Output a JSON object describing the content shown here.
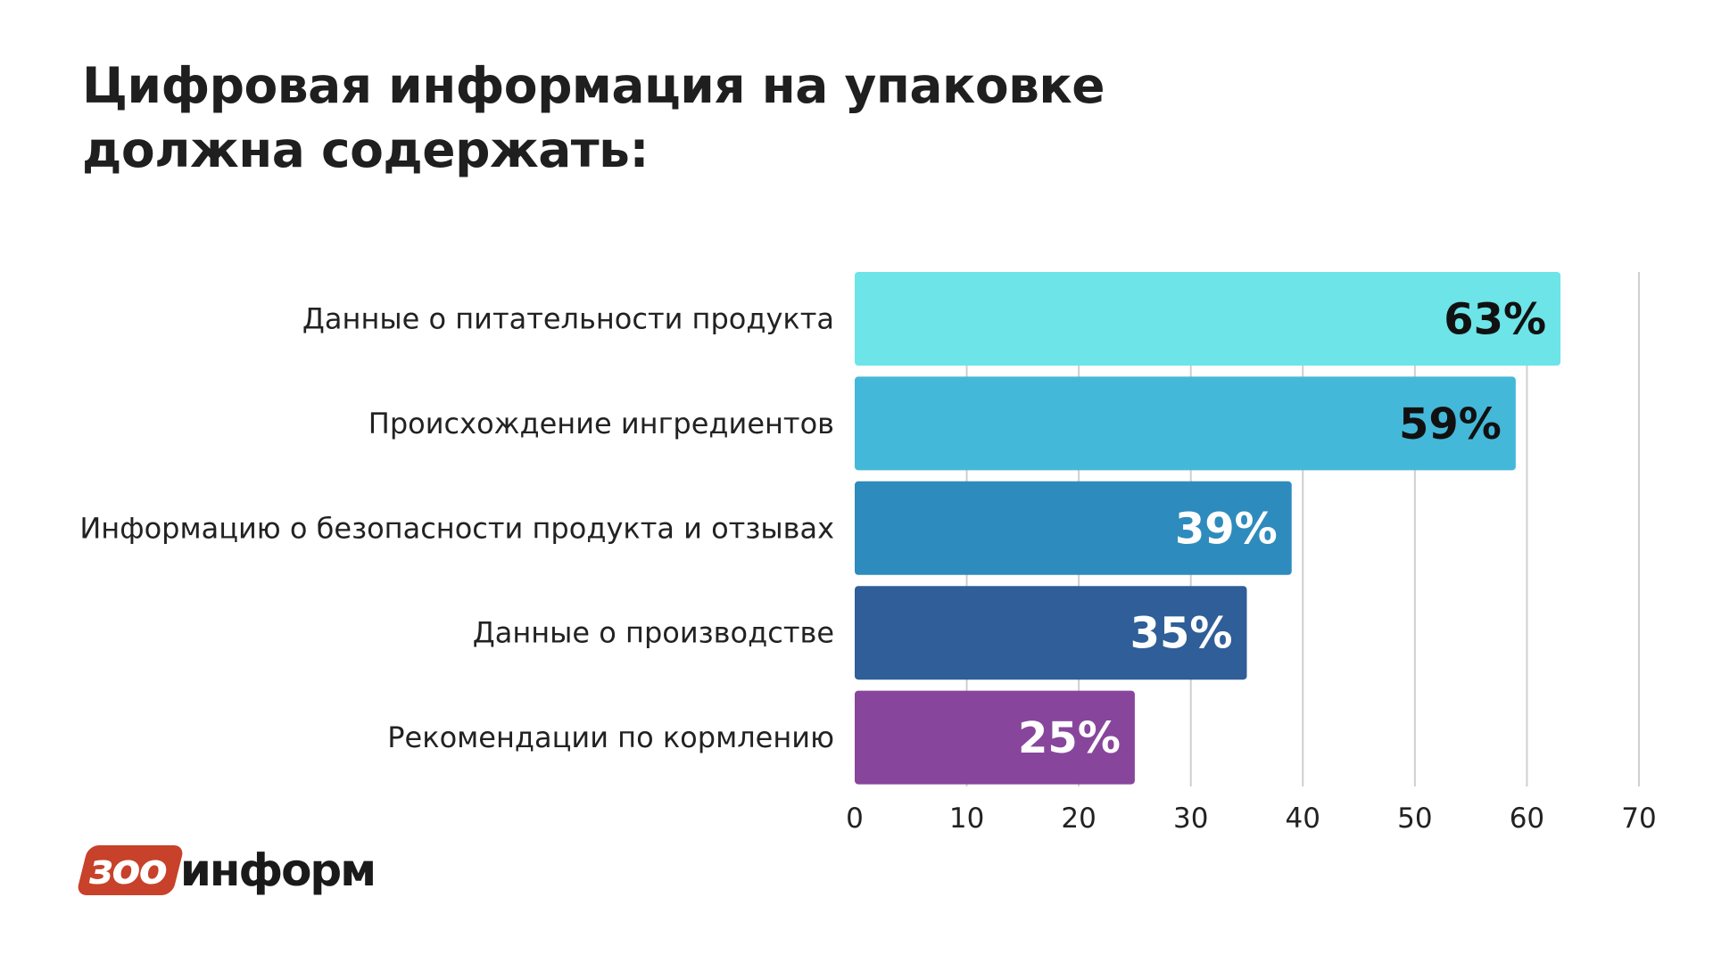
{
  "title": {
    "line1": "Цифровая информация на упаковке",
    "line2": "должна содержать:"
  },
  "logo": {
    "badge": "зоо",
    "word": "информ",
    "badge_color": "#c8412a"
  },
  "chart_data": {
    "type": "bar",
    "orientation": "horizontal",
    "title": "Цифровая информация на упаковке должна содержать:",
    "xlabel": "",
    "ylabel": "",
    "categories": [
      "Данные о питательности продукта",
      "Происхождение ингредиентов",
      "Информацию о безопасности продукта и отзывах",
      "Данные о производстве",
      "Рекомендации по кормлению"
    ],
    "values": [
      63,
      59,
      39,
      35,
      25
    ],
    "value_labels": [
      "63%",
      "59%",
      "39%",
      "35%",
      "25%"
    ],
    "colors": [
      "#6ce4e8",
      "#44b8d8",
      "#2e8bbd",
      "#2f5e98",
      "#87469c"
    ],
    "value_label_colors": [
      "#111111",
      "#111111",
      "#ffffff",
      "#ffffff",
      "#ffffff"
    ],
    "xlim": [
      0,
      70
    ],
    "xticks": [
      0,
      10,
      20,
      30,
      40,
      50,
      60,
      70
    ],
    "grid": true,
    "legend": "none"
  }
}
